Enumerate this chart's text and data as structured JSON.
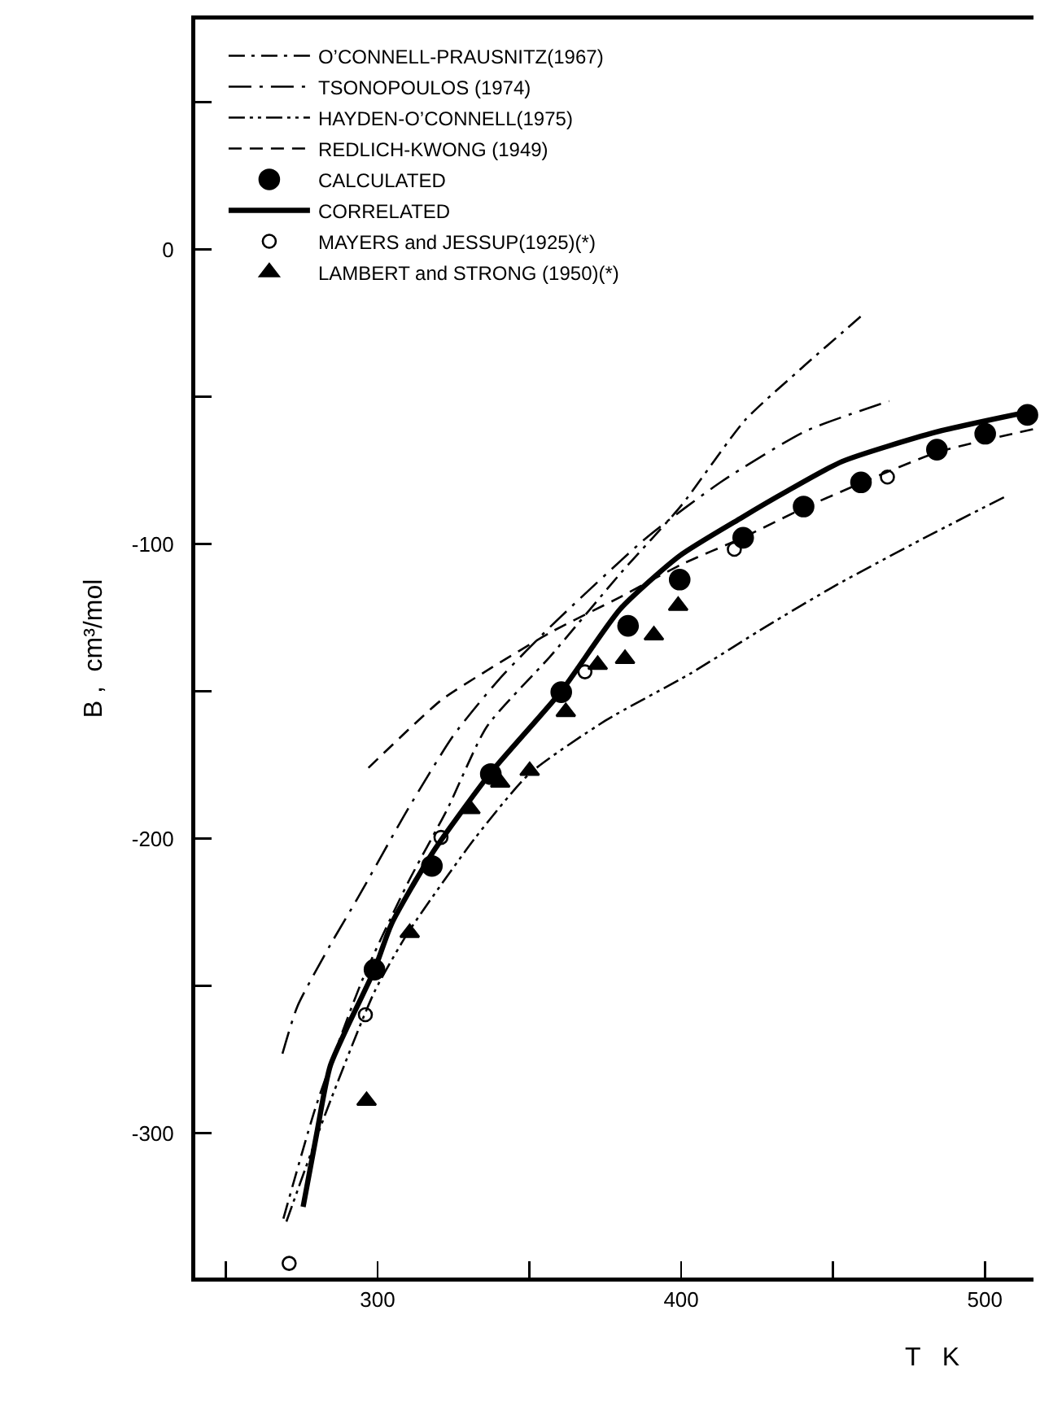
{
  "chart_data": {
    "type": "line",
    "xlabel": "T   K",
    "ylabel": "B ,  cm³/mol",
    "xlim": [
      240,
      516
    ],
    "xticks": [
      {
        "value": 250,
        "label": null
      },
      300,
      {
        "value": 350,
        "label": null
      },
      400,
      {
        "value": 450,
        "label": null
      },
      500
    ],
    "ylim": [
      -349,
      78
    ],
    "yticks": [
      -300,
      {
        "value": -250,
        "label": null
      },
      -200,
      {
        "value": -150,
        "label": null
      },
      -100,
      {
        "value": -50,
        "label": null
      },
      0,
      {
        "value": 50,
        "label": null
      }
    ],
    "grid": false,
    "legend": "top left",
    "series": [
      {
        "name": "O’CONNELL-PRAUSNITZ(1967)",
        "line_style": "dashdot",
        "color": "#000000",
        "x": [
          269,
          280,
          295,
          310,
          323,
          336,
          357,
          380,
          400,
          421,
          440,
          460
        ],
        "values": [
          -329,
          -290,
          -248,
          -215,
          -190,
          -162,
          -138,
          -110,
          -87,
          -58,
          -40,
          -22
        ]
      },
      {
        "name": "TSONOPOULOS (1974)",
        "line_style": "longdashdot",
        "color": "#000000",
        "x": [
          268.7,
          273.6,
          284.5,
          293.6,
          310,
          325,
          340,
          357,
          389,
          413.6,
          441,
          468.5
        ],
        "values": [
          -273,
          -257,
          -236,
          -220,
          -190,
          -165,
          -146,
          -128,
          -97.5,
          -78.6,
          -61.7,
          -51.5
        ]
      },
      {
        "name": "HAYDEN-O’CONNELL(1975)",
        "line_style": "dashdotdot",
        "color": "#000000",
        "x": [
          270,
          283,
          299,
          310,
          332,
          350,
          375,
          403,
          428,
          451,
          480,
          507.5
        ],
        "values": [
          -330,
          -293,
          -252,
          -232,
          -200,
          -178,
          -160,
          -144,
          -128,
          -114,
          -98,
          -83.5
        ]
      },
      {
        "name": "REDLICH-KWONG (1949)",
        "line_style": "dashed",
        "color": "#000000",
        "x": [
          297,
          321,
          336,
          357,
          380,
          400,
          420,
          440,
          460,
          484,
          516
        ],
        "values": [
          -176,
          -153,
          -143,
          -130,
          -118,
          -107,
          -98,
          -88,
          -79,
          -69,
          -61
        ]
      },
      {
        "name": "CALCULATED",
        "type": "scatter",
        "marker": "circle",
        "color": "#000000",
        "x": [
          299,
          317.9,
          337.3,
          360.5,
          382.5,
          399.5,
          420.4,
          440.3,
          459.2,
          484.2,
          500.1,
          514
        ],
        "values": [
          -244.5,
          -209.3,
          -178.1,
          -150.3,
          -127.8,
          -112.1,
          -97.9,
          -87.3,
          -79.1,
          -68,
          -62.6,
          -56.2
        ]
      },
      {
        "name": "CORRELATED",
        "line_style": "solid",
        "color": "#000000",
        "x": [
          275.5,
          280,
          284.5,
          299,
          304.6,
          318,
          337,
          360.5,
          380,
          399.5,
          420,
          435,
          453,
          484,
          515
        ],
        "values": [
          -325,
          -300,
          -277,
          -244.5,
          -229,
          -205,
          -178,
          -150,
          -122,
          -104,
          -91,
          -82,
          -72,
          -62,
          -55
        ]
      },
      {
        "name": "MAYERS and JESSUP(1925)(*)",
        "type": "scatter",
        "marker": "circle-open",
        "color": "#000000",
        "x": [
          270.9,
          296,
          320.9,
          368.3,
          417.5,
          467.9
        ],
        "values": [
          -344.2,
          -259.8,
          -199.6,
          -143.4,
          -101.8,
          -77.3
        ]
      },
      {
        "name": "LAMBERT and STRONG (1950)(*)",
        "type": "scatter",
        "marker": "triangle",
        "color": "#000000",
        "x": [
          296.4,
          310.6,
          330.6,
          340.4,
          350.1,
          362,
          372.5,
          381.5,
          391,
          399
        ],
        "values": [
          -289,
          -232,
          -190,
          -181,
          -177,
          -157,
          -141,
          -139,
          -131,
          -121
        ]
      }
    ]
  }
}
